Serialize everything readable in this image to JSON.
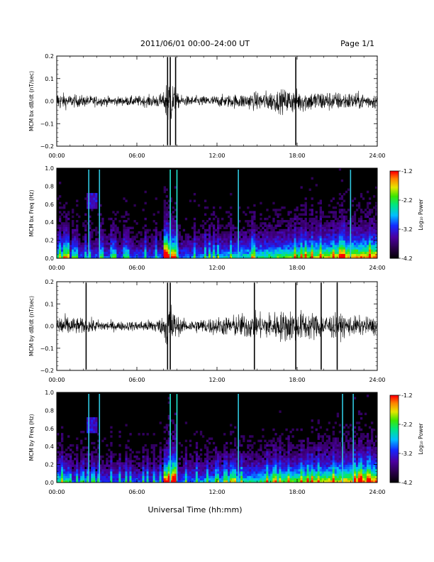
{
  "header": {
    "title": "2011/06/01   00:00–24:00 UT",
    "page": "Page 1/1"
  },
  "xaxis_label": "Universal Time (hh:mm)",
  "chart_data": [
    {
      "id": "bx-dbdt",
      "type": "line",
      "ylabel": "MCM bx dB/dt (nT/sec)",
      "xlim": [
        0,
        24
      ],
      "ylim": [
        -0.2,
        0.2
      ],
      "xticks": [
        "00:00",
        "06:00",
        "12:00",
        "18:00",
        "24:00"
      ],
      "yticks": [
        "0.2",
        "0.1",
        "0.0",
        "−0.1",
        "−0.2"
      ],
      "envelope": {
        "hours": [
          0,
          0.5,
          1,
          2,
          3,
          4,
          5,
          6,
          7,
          8,
          8.3,
          8.5,
          9,
          9.5,
          10,
          11,
          12,
          13,
          14,
          15,
          16,
          17,
          17.5,
          18,
          19,
          20,
          21,
          22,
          23,
          24
        ],
        "amplitude": [
          0.08,
          0.06,
          0.05,
          0.045,
          0.04,
          0.035,
          0.035,
          0.04,
          0.045,
          0.06,
          0.2,
          0.2,
          0.06,
          0.04,
          0.04,
          0.04,
          0.045,
          0.05,
          0.06,
          0.07,
          0.08,
          0.09,
          0.1,
          0.09,
          0.08,
          0.08,
          0.07,
          0.07,
          0.06,
          0.06
        ]
      },
      "spikes": [
        8.3,
        8.5,
        8.9,
        17.9
      ]
    },
    {
      "id": "bx-spec",
      "type": "heatmap",
      "ylabel": "MCM bx Freq (Hz)",
      "xlim": [
        0,
        24
      ],
      "ylim": [
        0,
        1.0
      ],
      "xticks": [
        "00:00",
        "06:00",
        "12:00",
        "18:00",
        "24:00"
      ],
      "yticks": [
        "1.0",
        "0.8",
        "0.6",
        "0.4",
        "0.2",
        "0.0"
      ],
      "colorbar": {
        "label": "Log₁₀ Power",
        "ticks": [
          "-1.2",
          "-2.2",
          "-3.2",
          "-4.2"
        ],
        "range": [
          -4.2,
          -1.2
        ]
      },
      "bright_lines": [
        2.4,
        3.2,
        8.5,
        9.0,
        13.6,
        22.0
      ]
    },
    {
      "id": "by-dbdt",
      "type": "line",
      "ylabel": "MCM by dB/dt (nT/sec)",
      "xlim": [
        0,
        24
      ],
      "ylim": [
        -0.2,
        0.2
      ],
      "xticks": [
        "00:00",
        "06:00",
        "12:00",
        "18:00",
        "24:00"
      ],
      "yticks": [
        "0.2",
        "0.1",
        "0.0",
        "−0.1",
        "−0.2"
      ],
      "envelope": {
        "hours": [
          0,
          0.5,
          1,
          2,
          3,
          4,
          5,
          6,
          7,
          8,
          8.3,
          8.5,
          9,
          9.5,
          10,
          11,
          12,
          13,
          14,
          15,
          16,
          17,
          17.5,
          18,
          19,
          20,
          21,
          22,
          23,
          24
        ],
        "amplitude": [
          0.1,
          0.09,
          0.07,
          0.06,
          0.05,
          0.04,
          0.035,
          0.04,
          0.05,
          0.07,
          0.2,
          0.2,
          0.08,
          0.05,
          0.05,
          0.06,
          0.07,
          0.08,
          0.1,
          0.1,
          0.11,
          0.12,
          0.13,
          0.12,
          0.11,
          0.1,
          0.09,
          0.08,
          0.07,
          0.07
        ]
      },
      "spikes": [
        2.2,
        8.3,
        8.5,
        14.8,
        17.9,
        19.8,
        21.0
      ]
    },
    {
      "id": "by-spec",
      "type": "heatmap",
      "ylabel": "MCM by Freq (Hz)",
      "xlim": [
        0,
        24
      ],
      "ylim": [
        0,
        1.0
      ],
      "xticks": [
        "00:00",
        "06:00",
        "12:00",
        "18:00",
        "24:00"
      ],
      "yticks": [
        "1.0",
        "0.8",
        "0.6",
        "0.4",
        "0.2",
        "0.0"
      ],
      "colorbar": {
        "label": "Log₁₀ Power",
        "ticks": [
          "-1.2",
          "-2.2",
          "-3.2",
          "-4.2"
        ],
        "range": [
          -4.2,
          -1.2
        ]
      },
      "bright_lines": [
        2.4,
        3.2,
        8.5,
        9.0,
        13.6,
        21.4,
        22.2
      ]
    }
  ]
}
